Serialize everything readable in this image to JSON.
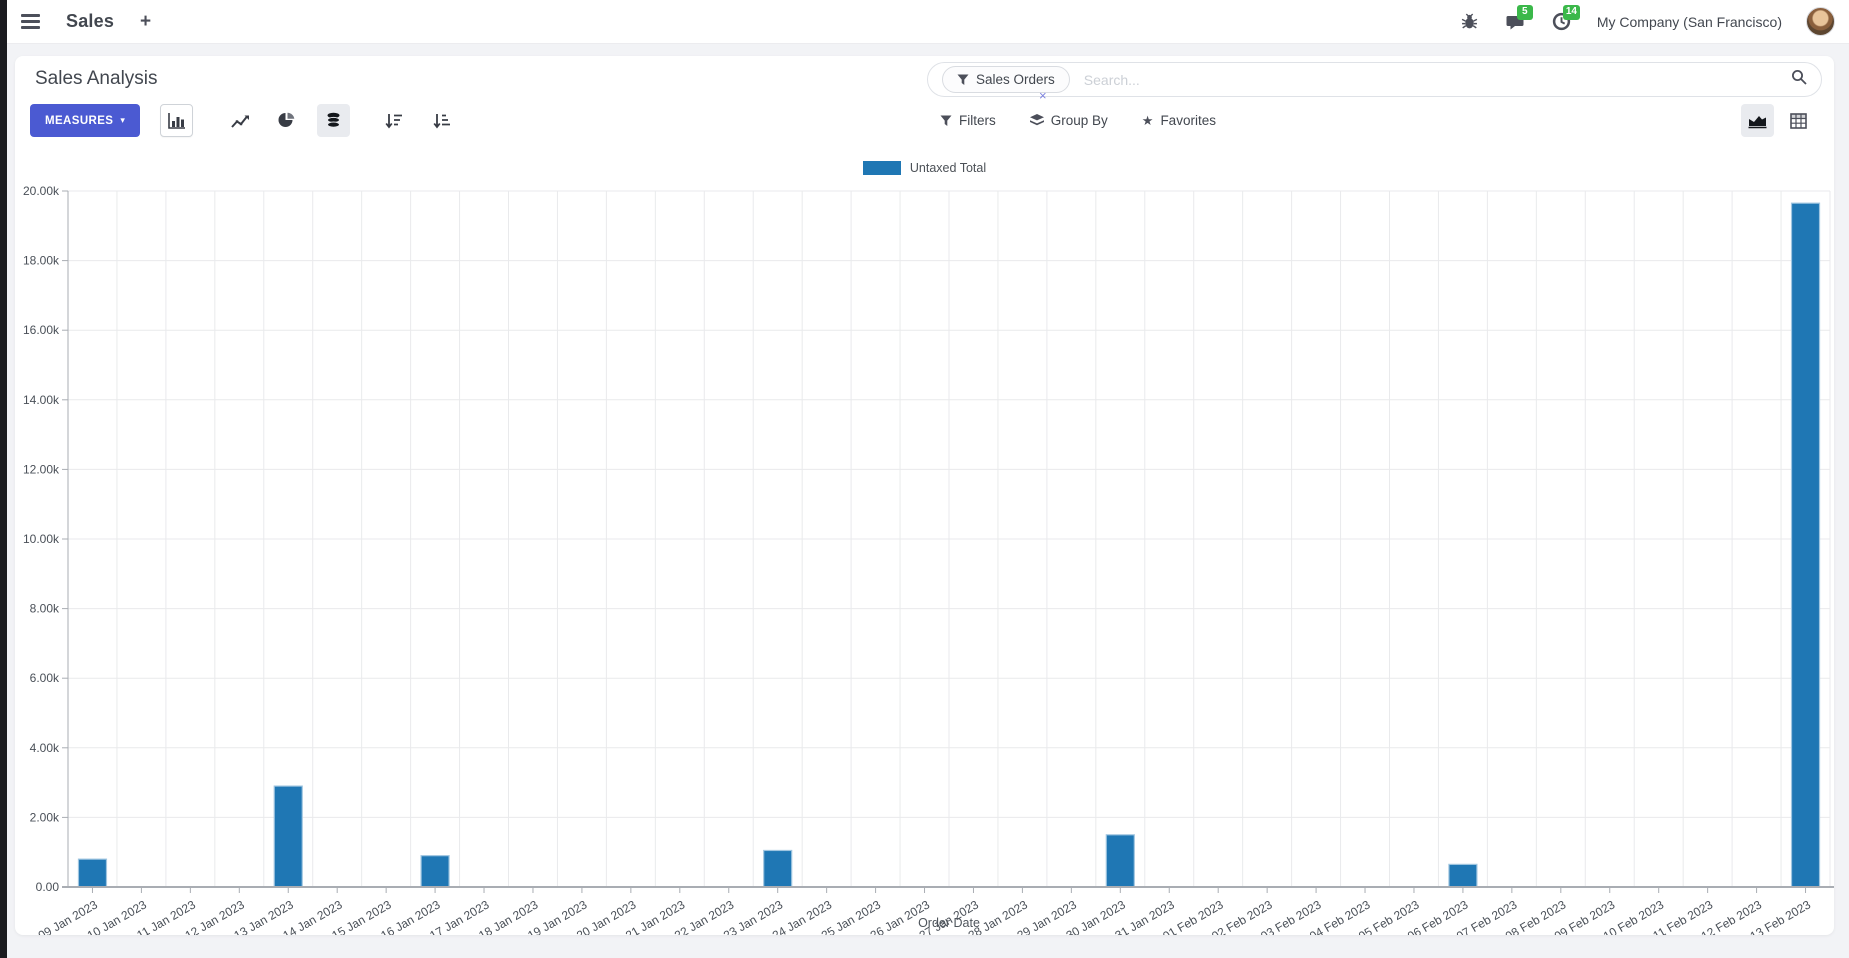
{
  "colors": {
    "accent": "#4b5ad2",
    "badge_green": "#3bb84a",
    "bar_blue": "#1f77b4"
  },
  "navbar": {
    "app_label": "Sales",
    "plus_icon": "+",
    "messages_count": "5",
    "activities_count": "14",
    "company": "My Company (San Francisco)"
  },
  "control_panel": {
    "title": "Sales Analysis",
    "measures_label": "MEASURES",
    "measures_caret": "▾",
    "search": {
      "facet_label": "Sales Orders",
      "facet_remove": "×",
      "placeholder": "Search..."
    },
    "filters_label": "Filters",
    "group_by_label": "Group By",
    "favorites_label": "Favorites",
    "favorites_star": "★"
  },
  "chart_data": {
    "type": "bar",
    "title": "",
    "categories": [
      "09 Jan 2023",
      "10 Jan 2023",
      "11 Jan 2023",
      "12 Jan 2023",
      "13 Jan 2023",
      "14 Jan 2023",
      "15 Jan 2023",
      "16 Jan 2023",
      "17 Jan 2023",
      "18 Jan 2023",
      "19 Jan 2023",
      "20 Jan 2023",
      "21 Jan 2023",
      "22 Jan 2023",
      "23 Jan 2023",
      "24 Jan 2023",
      "25 Jan 2023",
      "26 Jan 2023",
      "27 Jan 2023",
      "28 Jan 2023",
      "29 Jan 2023",
      "30 Jan 2023",
      "31 Jan 2023",
      "01 Feb 2023",
      "02 Feb 2023",
      "03 Feb 2023",
      "04 Feb 2023",
      "05 Feb 2023",
      "06 Feb 2023",
      "07 Feb 2023",
      "08 Feb 2023",
      "09 Feb 2023",
      "10 Feb 2023",
      "11 Feb 2023",
      "12 Feb 2023",
      "13 Feb 2023"
    ],
    "series": [
      {
        "name": "Untaxed Total",
        "values": [
          800,
          0,
          0,
          0,
          2900,
          0,
          0,
          900,
          0,
          0,
          0,
          0,
          0,
          0,
          1050,
          0,
          0,
          0,
          0,
          0,
          0,
          1500,
          0,
          0,
          0,
          0,
          0,
          0,
          650,
          0,
          0,
          0,
          0,
          0,
          0,
          19650
        ]
      }
    ],
    "xlabel": "Order Date",
    "ylabel": "",
    "ylim": [
      0,
      20000
    ],
    "ytick_step": 2000,
    "ytick_labels": [
      "0.00",
      "2.00k",
      "4.00k",
      "6.00k",
      "8.00k",
      "10.00k",
      "12.00k",
      "14.00k",
      "16.00k",
      "18.00k",
      "20.00k"
    ],
    "legend_position": "top",
    "grid": true,
    "bar_color": "#1f77b4",
    "bar_border": "#9fc5e0"
  }
}
